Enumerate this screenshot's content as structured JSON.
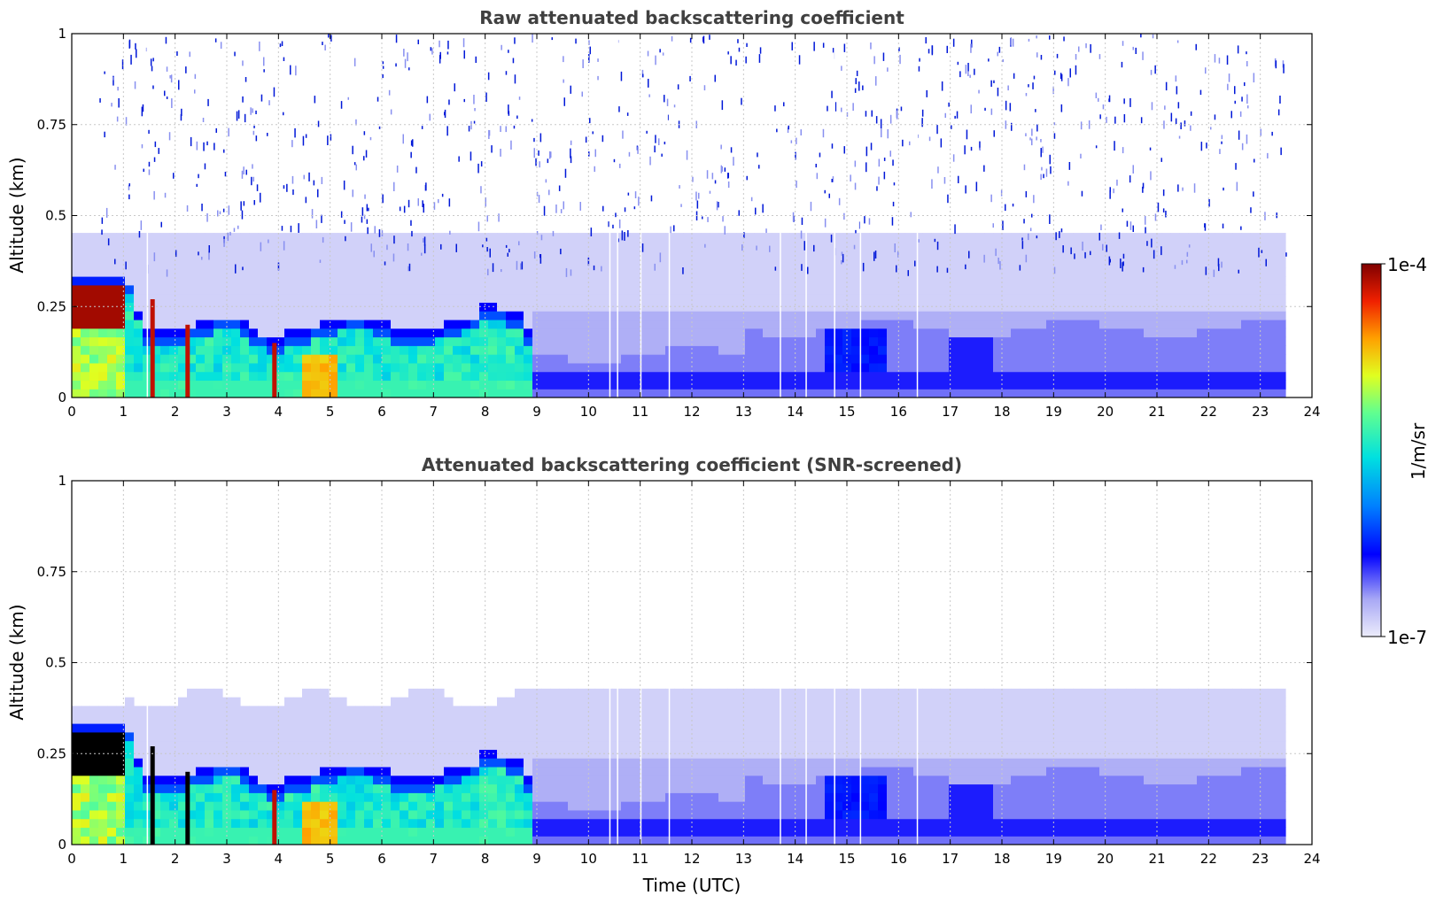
{
  "chart_data": [
    {
      "type": "heatmap",
      "title": "Raw attenuated backscattering coefficient",
      "xlabel": "",
      "ylabel": "Altitude (km)",
      "xlim": [
        0,
        24
      ],
      "ylim": [
        0,
        1
      ],
      "xticks": [
        "0",
        "1",
        "2",
        "3",
        "4",
        "5",
        "6",
        "7",
        "8",
        "9",
        "10",
        "11",
        "12",
        "13",
        "14",
        "15",
        "16",
        "17",
        "18",
        "19",
        "20",
        "21",
        "22",
        "23",
        "24"
      ],
      "yticks": [
        "0",
        "0.25",
        "0.5",
        "0.75",
        "1"
      ],
      "grid": true,
      "data_end_time": 23.55,
      "regions": [
        {
          "x": [
            0,
            1.1
          ],
          "top_km": 0.33,
          "note": "strong layer, max in 0.2-0.3 km"
        },
        {
          "x": [
            1.1,
            8.9
          ],
          "top_km": 0.22,
          "note": "boundary layer, moderate-strong"
        },
        {
          "x": [
            9,
            23.55
          ],
          "top_km": 0.2,
          "note": "weak layer near surface"
        }
      ]
    },
    {
      "type": "heatmap",
      "title": "Attenuated backscattering coefficient (SNR-screened)",
      "xlabel": "Time (UTC)",
      "ylabel": "Altitude (km)",
      "xlim": [
        0,
        24
      ],
      "ylim": [
        0,
        1
      ],
      "xticks": [
        "0",
        "1",
        "2",
        "3",
        "4",
        "5",
        "6",
        "7",
        "8",
        "9",
        "10",
        "11",
        "12",
        "13",
        "14",
        "15",
        "16",
        "17",
        "18",
        "19",
        "20",
        "21",
        "22",
        "23",
        "24"
      ],
      "yticks": [
        "0",
        "0.25",
        "0.5",
        "0.75",
        "1"
      ],
      "grid": true,
      "data_end_time": 23.55
    }
  ],
  "colorbar": {
    "label": "1/m/sr",
    "max_label": "1e-4",
    "min_label": "1e-7",
    "scale": "log",
    "range": [
      1e-07,
      0.0001
    ]
  }
}
